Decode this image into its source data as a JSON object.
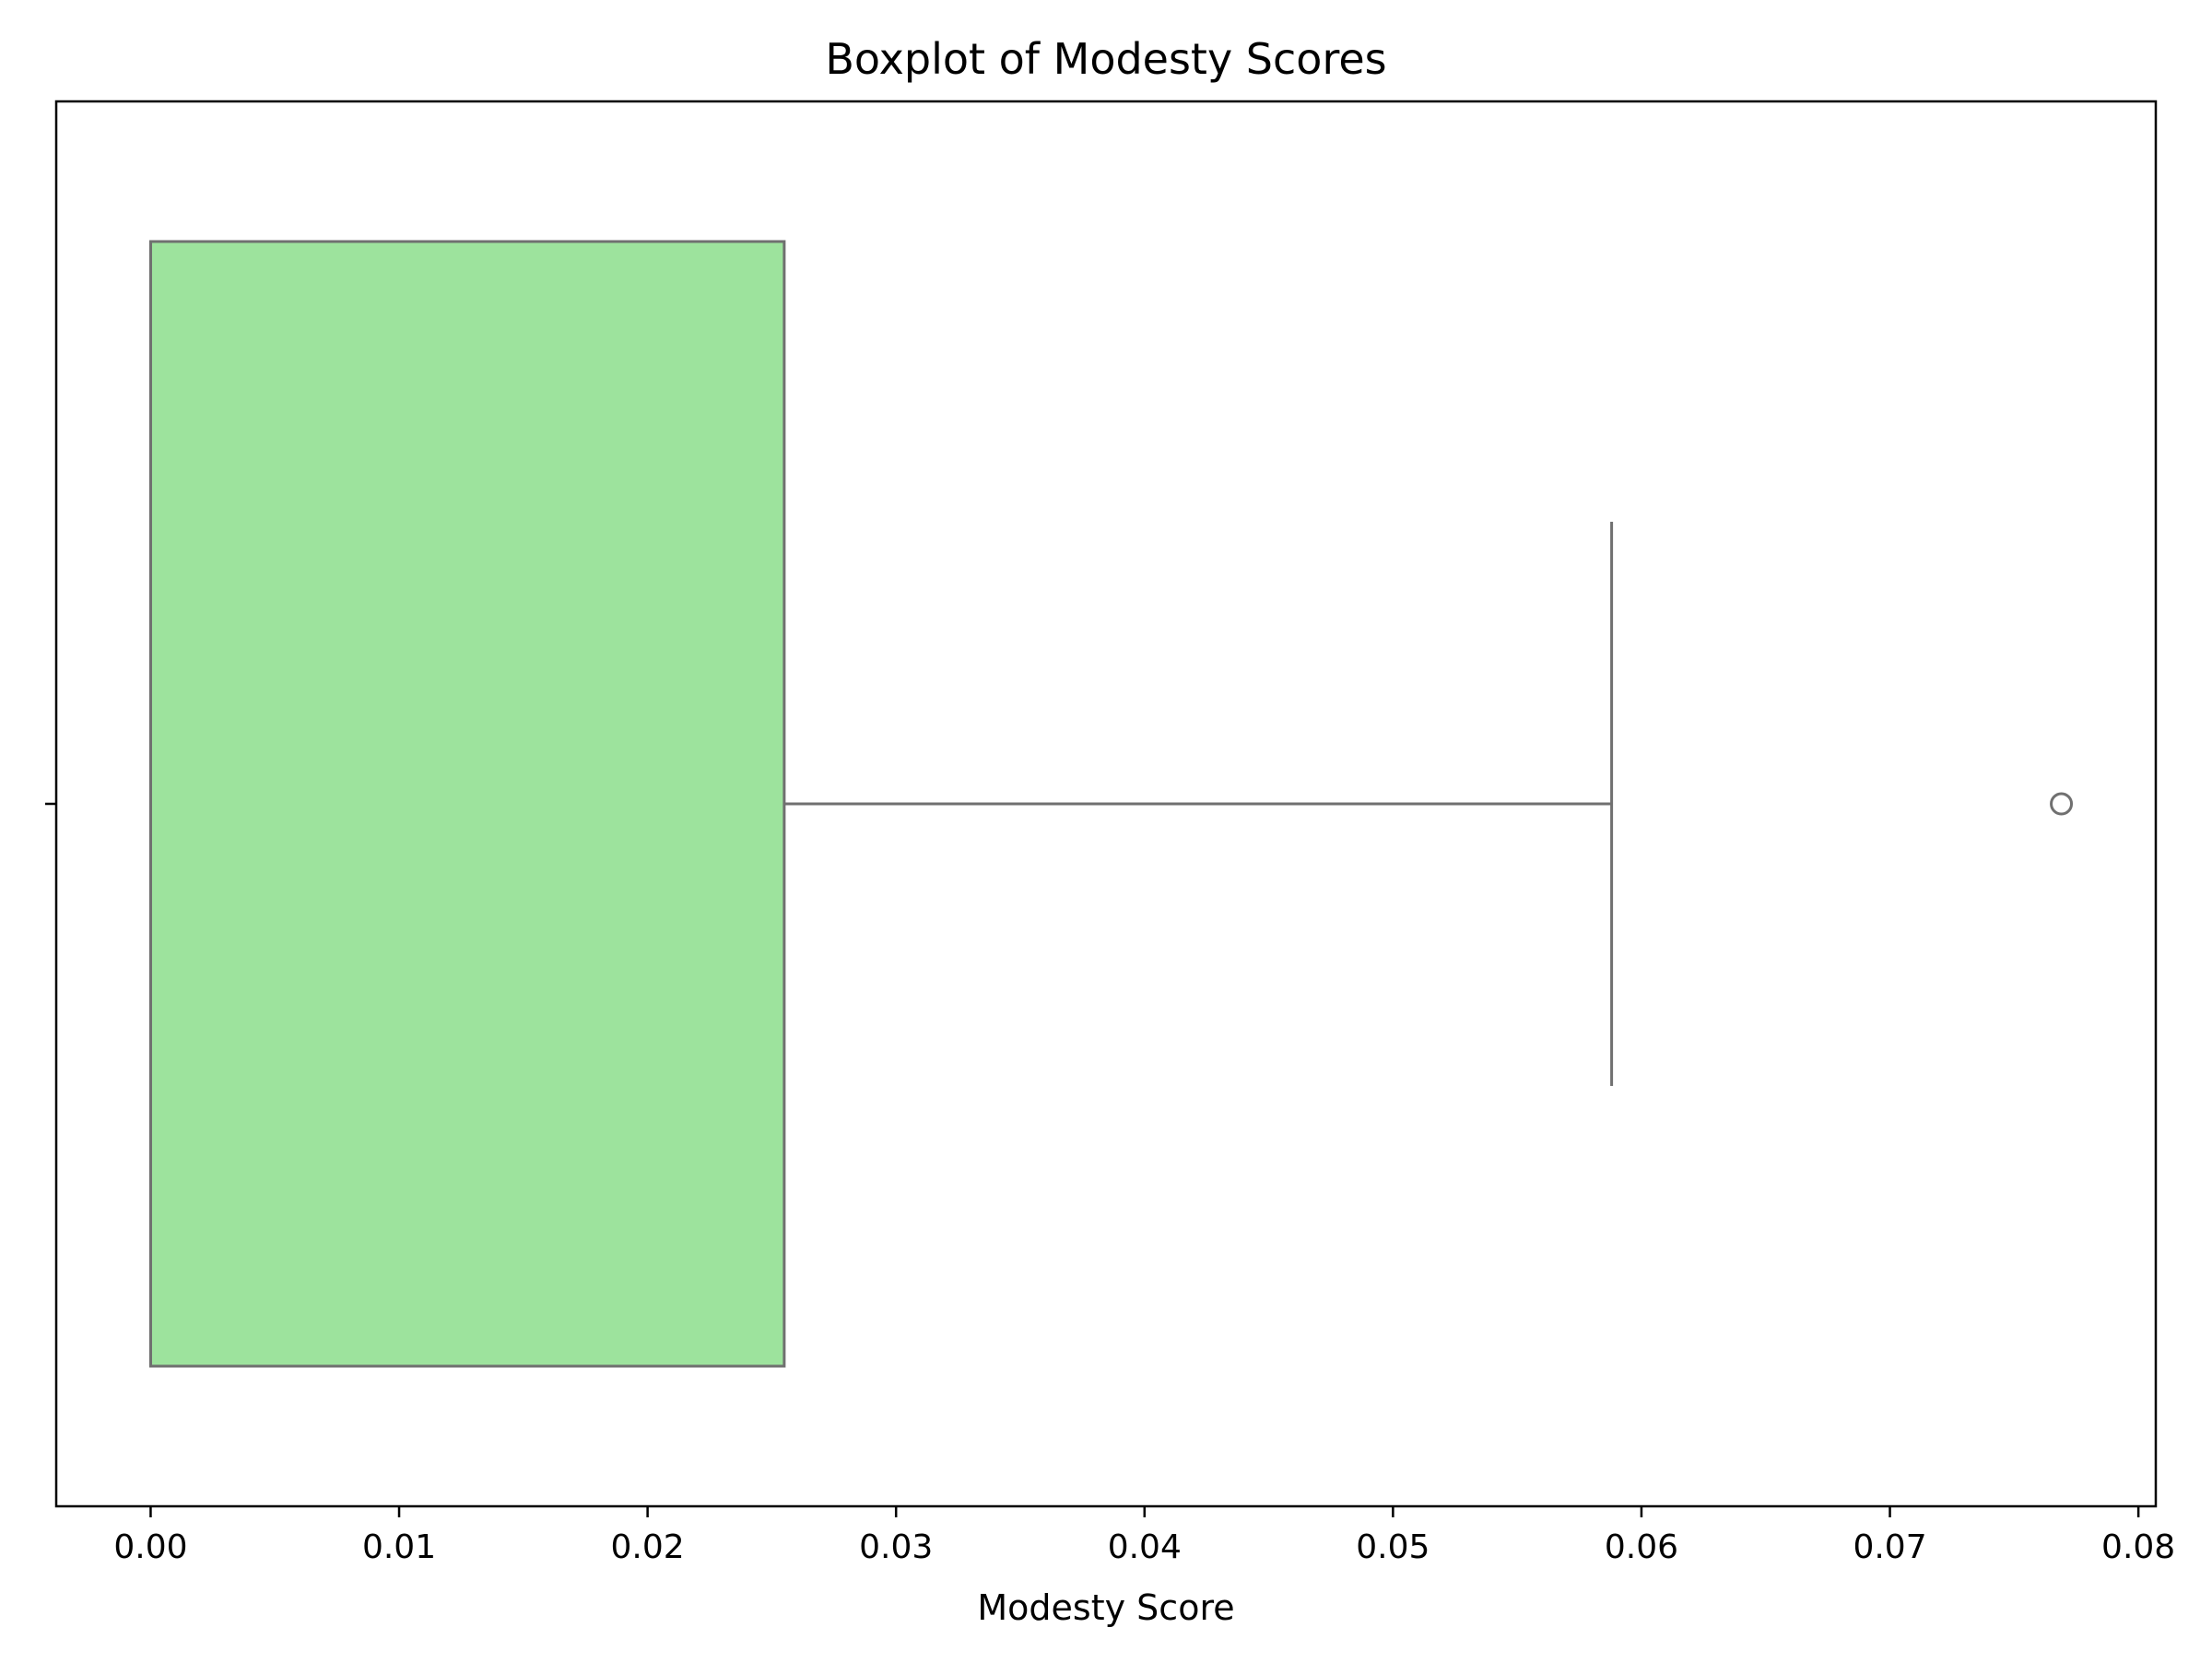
{
  "chart_data": {
    "type": "boxplot",
    "title": "Boxplot of Modesty Scores",
    "xlabel": "Modesty Score",
    "ylabel": "",
    "orientation": "horizontal",
    "xlim": [
      -0.0038,
      0.0807
    ],
    "xticks": [
      0.0,
      0.01,
      0.02,
      0.03,
      0.04,
      0.05,
      0.06,
      0.07,
      0.08
    ],
    "xtick_labels": [
      "0.00",
      "0.01",
      "0.02",
      "0.03",
      "0.04",
      "0.05",
      "0.06",
      "0.07",
      "0.08"
    ],
    "grid": false,
    "box": {
      "min": 0.0,
      "q1": 0.0,
      "median": 0.0,
      "q3": 0.0255,
      "whisker_low": 0.0,
      "whisker_high": 0.0588,
      "outliers": [
        0.0769
      ]
    },
    "colors": {
      "box_fill": "#9de39d",
      "line": "#707070",
      "axis": "#000000"
    }
  }
}
